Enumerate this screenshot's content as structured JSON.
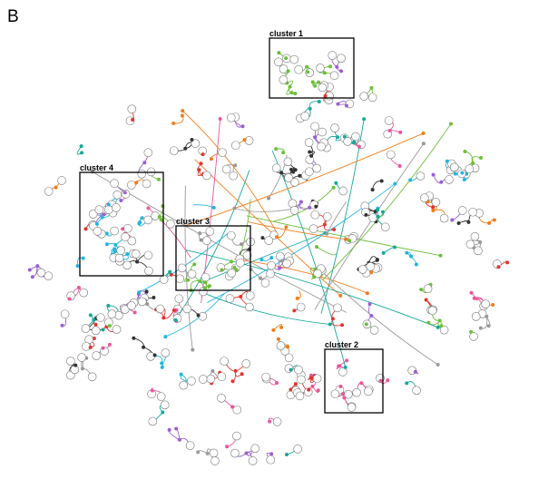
{
  "panel_label": "B",
  "clusters": [
    {
      "label": "cluster 1"
    },
    {
      "label": "cluster 2"
    },
    {
      "label": "cluster 3"
    },
    {
      "label": "cluster 4"
    }
  ]
}
